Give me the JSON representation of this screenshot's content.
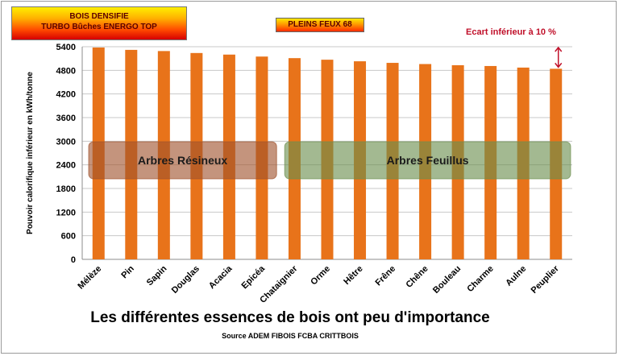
{
  "header": {
    "badge_line1": "BOIS DENSIFIE",
    "badge_line2": "TURBO Bûches  ENERGO  TOP",
    "badge_mid": "PLEINS FEUX 68",
    "ecart_note": "Ecart inférieur à 10 %"
  },
  "chart_data": {
    "type": "bar",
    "title": "Les différentes essences de bois ont peu d'importance",
    "subtitle": "Source ADEM FIBOIS FCBA CRITTBOIS",
    "ylabel": "Pouvoir calorifique inférieur en kWh/tonne",
    "xlabel": "",
    "ylim": [
      0,
      5400
    ],
    "yticks": [
      0,
      600,
      1200,
      1800,
      2400,
      3000,
      3600,
      4200,
      4800,
      5400
    ],
    "grid": true,
    "categories": [
      "Mélèze",
      "Pin",
      "Sapin",
      "Douglas",
      "Acacia",
      "Epicéa",
      "Chataignier",
      "Orme",
      "Hêtre",
      "Frêne",
      "Chêne",
      "Bouleau",
      "Charme",
      "Aulne",
      "Peuplier"
    ],
    "values": [
      5380,
      5320,
      5290,
      5240,
      5200,
      5150,
      5110,
      5070,
      5030,
      4990,
      4960,
      4930,
      4910,
      4870,
      4840
    ],
    "bar_color": "#e8731a",
    "groups": [
      {
        "label": "Arbres Résineux",
        "from": 0,
        "to": 5,
        "color": "#a0522d"
      },
      {
        "label": "Arbres Feuillus",
        "from": 6,
        "to": 14,
        "color": "#6b8e4e"
      }
    ]
  }
}
